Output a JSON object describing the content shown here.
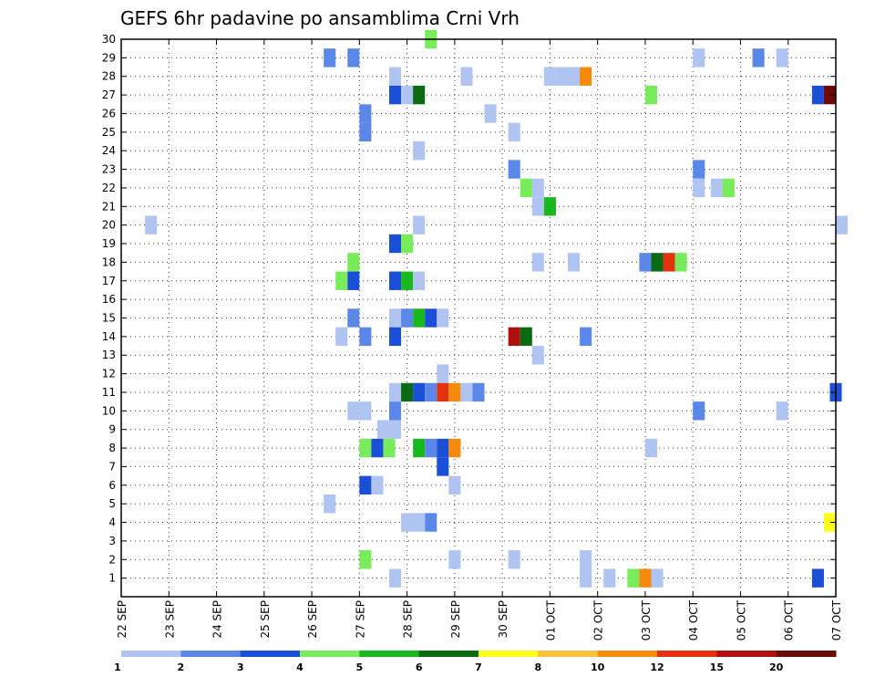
{
  "chart_data": {
    "type": "heatmap",
    "title": "GEFS 6hr padavine po ansamblima Crni Vrh",
    "xlabel": "",
    "ylabel": "",
    "x_tick_labels": [
      "22 SEP",
      "23 SEP",
      "24 SEP",
      "25 SEP",
      "26 SEP",
      "27 SEP",
      "28 SEP",
      "29 SEP",
      "30 SEP",
      "01 OCT",
      "02 OCT",
      "03 OCT",
      "04 OCT",
      "05 OCT",
      "06 OCT",
      "07 OCT"
    ],
    "x_unit": "6-hour step",
    "xlim": [
      0,
      60
    ],
    "ylim": [
      0,
      30
    ],
    "y_ticks": [
      1,
      2,
      3,
      4,
      5,
      6,
      7,
      8,
      9,
      10,
      11,
      12,
      13,
      14,
      15,
      16,
      17,
      18,
      19,
      20,
      21,
      22,
      23,
      24,
      25,
      26,
      27,
      28,
      29,
      30
    ],
    "grid": true,
    "colorbar": {
      "labels": [
        "1",
        "2",
        "3",
        "4",
        "5",
        "6",
        "7",
        "8",
        "10",
        "12",
        "15",
        "20"
      ],
      "colors": [
        "#b0c4f2",
        "#5b88e8",
        "#1a4fd6",
        "#78ec5a",
        "#19b81e",
        "#0b6b13",
        "#fdfd1e",
        "#f8c23e",
        "#f58a0c",
        "#e2320f",
        "#b01010",
        "#6e0a0a"
      ]
    },
    "cells": [
      {
        "t": 26.0,
        "m": 30,
        "c": 3
      },
      {
        "t": 17.5,
        "m": 29,
        "c": 1
      },
      {
        "t": 19.5,
        "m": 29,
        "c": 1
      },
      {
        "t": 48.5,
        "m": 29,
        "c": 0
      },
      {
        "t": 53.5,
        "m": 29,
        "c": 1
      },
      {
        "t": 55.5,
        "m": 29,
        "c": 0
      },
      {
        "t": 23.0,
        "m": 28,
        "c": 0
      },
      {
        "t": 29.0,
        "m": 28,
        "c": 0
      },
      {
        "t": 36.0,
        "m": 28,
        "c": 0
      },
      {
        "t": 37.0,
        "m": 28,
        "c": 0
      },
      {
        "t": 38.0,
        "m": 28,
        "c": 0
      },
      {
        "t": 39.0,
        "m": 28,
        "c": 8
      },
      {
        "t": 23.0,
        "m": 27,
        "c": 2
      },
      {
        "t": 24.0,
        "m": 27,
        "c": 0
      },
      {
        "t": 25.0,
        "m": 27,
        "c": 5
      },
      {
        "t": 44.5,
        "m": 27,
        "c": 3
      },
      {
        "t": 58.5,
        "m": 27,
        "c": 2
      },
      {
        "t": 59.5,
        "m": 27,
        "c": 11
      },
      {
        "t": 20.5,
        "m": 26,
        "c": 1
      },
      {
        "t": 31.0,
        "m": 26,
        "c": 0
      },
      {
        "t": 20.5,
        "m": 25,
        "c": 1
      },
      {
        "t": 33.0,
        "m": 25,
        "c": 0
      },
      {
        "t": 25.0,
        "m": 24,
        "c": 0
      },
      {
        "t": 33.0,
        "m": 23,
        "c": 1
      },
      {
        "t": 48.5,
        "m": 23,
        "c": 1
      },
      {
        "t": 34.0,
        "m": 22,
        "c": 3
      },
      {
        "t": 35.0,
        "m": 22,
        "c": 0
      },
      {
        "t": 48.5,
        "m": 22,
        "c": 0
      },
      {
        "t": 50.0,
        "m": 22,
        "c": 0
      },
      {
        "t": 51.0,
        "m": 22,
        "c": 3
      },
      {
        "t": 35.0,
        "m": 21,
        "c": 0
      },
      {
        "t": 36.0,
        "m": 21,
        "c": 4
      },
      {
        "t": 2.5,
        "m": 20,
        "c": 0
      },
      {
        "t": 25.0,
        "m": 20,
        "c": 0
      },
      {
        "t": 60.5,
        "m": 20,
        "c": 0
      },
      {
        "t": 23.0,
        "m": 19,
        "c": 2
      },
      {
        "t": 24.0,
        "m": 19,
        "c": 3
      },
      {
        "t": 19.5,
        "m": 18,
        "c": 3
      },
      {
        "t": 35.0,
        "m": 18,
        "c": 0
      },
      {
        "t": 38.0,
        "m": 18,
        "c": 0
      },
      {
        "t": 44.0,
        "m": 18,
        "c": 1
      },
      {
        "t": 45.0,
        "m": 18,
        "c": 5
      },
      {
        "t": 46.0,
        "m": 18,
        "c": 9
      },
      {
        "t": 47.0,
        "m": 18,
        "c": 3
      },
      {
        "t": 18.5,
        "m": 17,
        "c": 3
      },
      {
        "t": 19.5,
        "m": 17,
        "c": 2
      },
      {
        "t": 23.0,
        "m": 17,
        "c": 2
      },
      {
        "t": 24.0,
        "m": 17,
        "c": 4
      },
      {
        "t": 25.0,
        "m": 17,
        "c": 0
      },
      {
        "t": 19.5,
        "m": 15,
        "c": 1
      },
      {
        "t": 23.0,
        "m": 15,
        "c": 0
      },
      {
        "t": 24.0,
        "m": 15,
        "c": 1
      },
      {
        "t": 25.0,
        "m": 15,
        "c": 4
      },
      {
        "t": 26.0,
        "m": 15,
        "c": 2
      },
      {
        "t": 27.0,
        "m": 15,
        "c": 0
      },
      {
        "t": 18.5,
        "m": 14,
        "c": 0
      },
      {
        "t": 20.5,
        "m": 14,
        "c": 1
      },
      {
        "t": 23.0,
        "m": 14,
        "c": 2
      },
      {
        "t": 33.0,
        "m": 14,
        "c": 10
      },
      {
        "t": 34.0,
        "m": 14,
        "c": 5
      },
      {
        "t": 39.0,
        "m": 14,
        "c": 1
      },
      {
        "t": 35.0,
        "m": 13,
        "c": 0
      },
      {
        "t": 27.0,
        "m": 12,
        "c": 0
      },
      {
        "t": 23.0,
        "m": 11,
        "c": 0
      },
      {
        "t": 24.0,
        "m": 11,
        "c": 5
      },
      {
        "t": 25.0,
        "m": 11,
        "c": 2
      },
      {
        "t": 26.0,
        "m": 11,
        "c": 1
      },
      {
        "t": 27.0,
        "m": 11,
        "c": 9
      },
      {
        "t": 28.0,
        "m": 11,
        "c": 8
      },
      {
        "t": 29.0,
        "m": 11,
        "c": 0
      },
      {
        "t": 30.0,
        "m": 11,
        "c": 1
      },
      {
        "t": 60.0,
        "m": 11,
        "c": 2
      },
      {
        "t": 19.5,
        "m": 10,
        "c": 0
      },
      {
        "t": 20.5,
        "m": 10,
        "c": 0
      },
      {
        "t": 23.0,
        "m": 10,
        "c": 1
      },
      {
        "t": 48.5,
        "m": 10,
        "c": 1
      },
      {
        "t": 55.5,
        "m": 10,
        "c": 0
      },
      {
        "t": 22.0,
        "m": 9,
        "c": 0
      },
      {
        "t": 23.0,
        "m": 9,
        "c": 0
      },
      {
        "t": 20.5,
        "m": 8,
        "c": 3
      },
      {
        "t": 21.5,
        "m": 8,
        "c": 2
      },
      {
        "t": 22.5,
        "m": 8,
        "c": 3
      },
      {
        "t": 25.0,
        "m": 8,
        "c": 4
      },
      {
        "t": 26.0,
        "m": 8,
        "c": 1
      },
      {
        "t": 27.0,
        "m": 8,
        "c": 2
      },
      {
        "t": 28.0,
        "m": 8,
        "c": 8
      },
      {
        "t": 44.5,
        "m": 8,
        "c": 0
      },
      {
        "t": 27.0,
        "m": 7,
        "c": 2
      },
      {
        "t": 20.5,
        "m": 6,
        "c": 2
      },
      {
        "t": 21.5,
        "m": 6,
        "c": 0
      },
      {
        "t": 28.0,
        "m": 6,
        "c": 0
      },
      {
        "t": 17.5,
        "m": 5,
        "c": 0
      },
      {
        "t": 24.0,
        "m": 4,
        "c": 0
      },
      {
        "t": 25.0,
        "m": 4,
        "c": 0
      },
      {
        "t": 26.0,
        "m": 4,
        "c": 1
      },
      {
        "t": 59.5,
        "m": 4,
        "c": 6
      },
      {
        "t": 20.5,
        "m": 2,
        "c": 3
      },
      {
        "t": 28.0,
        "m": 2,
        "c": 0
      },
      {
        "t": 33.0,
        "m": 2,
        "c": 0
      },
      {
        "t": 39.0,
        "m": 2,
        "c": 0
      },
      {
        "t": 23.0,
        "m": 1,
        "c": 0
      },
      {
        "t": 39.0,
        "m": 1,
        "c": 0
      },
      {
        "t": 41.0,
        "m": 1,
        "c": 0
      },
      {
        "t": 43.0,
        "m": 1,
        "c": 3
      },
      {
        "t": 44.0,
        "m": 1,
        "c": 8
      },
      {
        "t": 45.0,
        "m": 1,
        "c": 0
      },
      {
        "t": 58.5,
        "m": 1,
        "c": 2
      }
    ]
  }
}
